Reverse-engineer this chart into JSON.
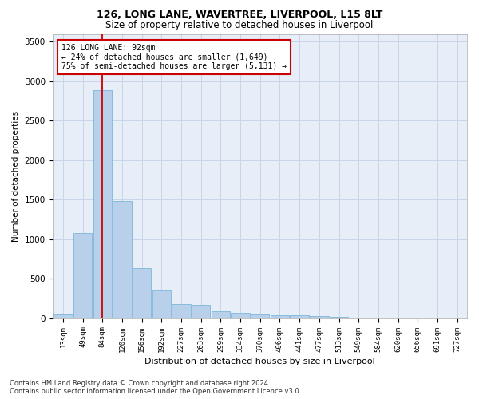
{
  "title1": "126, LONG LANE, WAVERTREE, LIVERPOOL, L15 8LT",
  "title2": "Size of property relative to detached houses in Liverpool",
  "xlabel": "Distribution of detached houses by size in Liverpool",
  "ylabel": "Number of detached properties",
  "annotation_title": "126 LONG LANE: 92sqm",
  "annotation_line1": "← 24% of detached houses are smaller (1,649)",
  "annotation_line2": "75% of semi-detached houses are larger (5,131) →",
  "footer1": "Contains HM Land Registry data © Crown copyright and database right 2024.",
  "footer2": "Contains public sector information licensed under the Open Government Licence v3.0.",
  "bar_heights": [
    50,
    1080,
    2890,
    1480,
    630,
    350,
    175,
    165,
    90,
    65,
    50,
    40,
    35,
    25,
    15,
    10,
    8,
    5,
    5,
    3
  ],
  "tick_labels": [
    "13sqm",
    "49sqm",
    "84sqm",
    "120sqm",
    "156sqm",
    "192sqm",
    "227sqm",
    "263sqm",
    "299sqm",
    "334sqm",
    "370sqm",
    "406sqm",
    "441sqm",
    "477sqm",
    "513sqm",
    "549sqm",
    "584sqm",
    "620sqm",
    "656sqm",
    "691sqm",
    "727sqm"
  ],
  "bar_color": "#b8d0ea",
  "bar_edge_color": "#6baed6",
  "vline_color": "#cc0000",
  "vline_x": 2.0,
  "annotation_box_color": "#cc0000",
  "grid_color": "#c8d4e8",
  "background_color": "#e8eef8",
  "ylim": [
    0,
    3600
  ],
  "yticks": [
    0,
    500,
    1000,
    1500,
    2000,
    2500,
    3000,
    3500
  ],
  "title1_fontsize": 9,
  "title2_fontsize": 8.5,
  "xlabel_fontsize": 8,
  "ylabel_fontsize": 7.5,
  "tick_fontsize": 6.5,
  "ytick_fontsize": 7.5,
  "ann_fontsize": 7,
  "footer_fontsize": 6
}
